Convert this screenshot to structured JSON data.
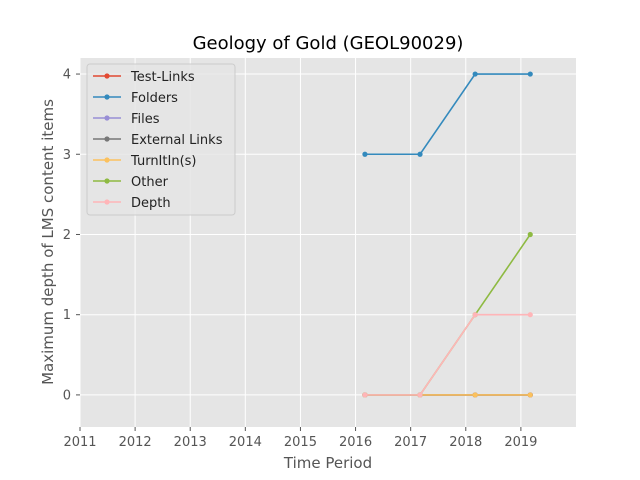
{
  "chart_data": {
    "type": "line",
    "title": "Geology of Gold (GEOL90029)",
    "xlabel": "Time Period",
    "ylabel": "Maximum depth of LMS content items",
    "xlim": [
      2011,
      2020
    ],
    "ylim": [
      -0.4,
      4.2
    ],
    "x_ticks": [
      2011,
      2012,
      2013,
      2014,
      2015,
      2016,
      2017,
      2018,
      2019
    ],
    "y_ticks": [
      0,
      1,
      2,
      3,
      4
    ],
    "grid": true,
    "legend_position": "upper left",
    "x": [
      2016.17,
      2017.17,
      2018.17,
      2019.17
    ],
    "series": [
      {
        "name": "Test-Links",
        "color": "#e24a33",
        "values": [
          0,
          0,
          0,
          0
        ]
      },
      {
        "name": "Folders",
        "color": "#348abd",
        "values": [
          3,
          3,
          4,
          4
        ]
      },
      {
        "name": "Files",
        "color": "#988ed5",
        "values": [
          0,
          0,
          0,
          0
        ]
      },
      {
        "name": "External Links",
        "color": "#777777",
        "values": [
          0,
          0,
          0,
          0
        ]
      },
      {
        "name": "TurnItIn(s)",
        "color": "#fbc15e",
        "values": [
          0,
          0,
          0,
          0
        ]
      },
      {
        "name": "Other",
        "color": "#8eba42",
        "values": [
          0,
          0,
          1,
          2
        ]
      },
      {
        "name": "Depth",
        "color": "#ffb5b8",
        "values": [
          0,
          0,
          1,
          1
        ]
      }
    ]
  }
}
